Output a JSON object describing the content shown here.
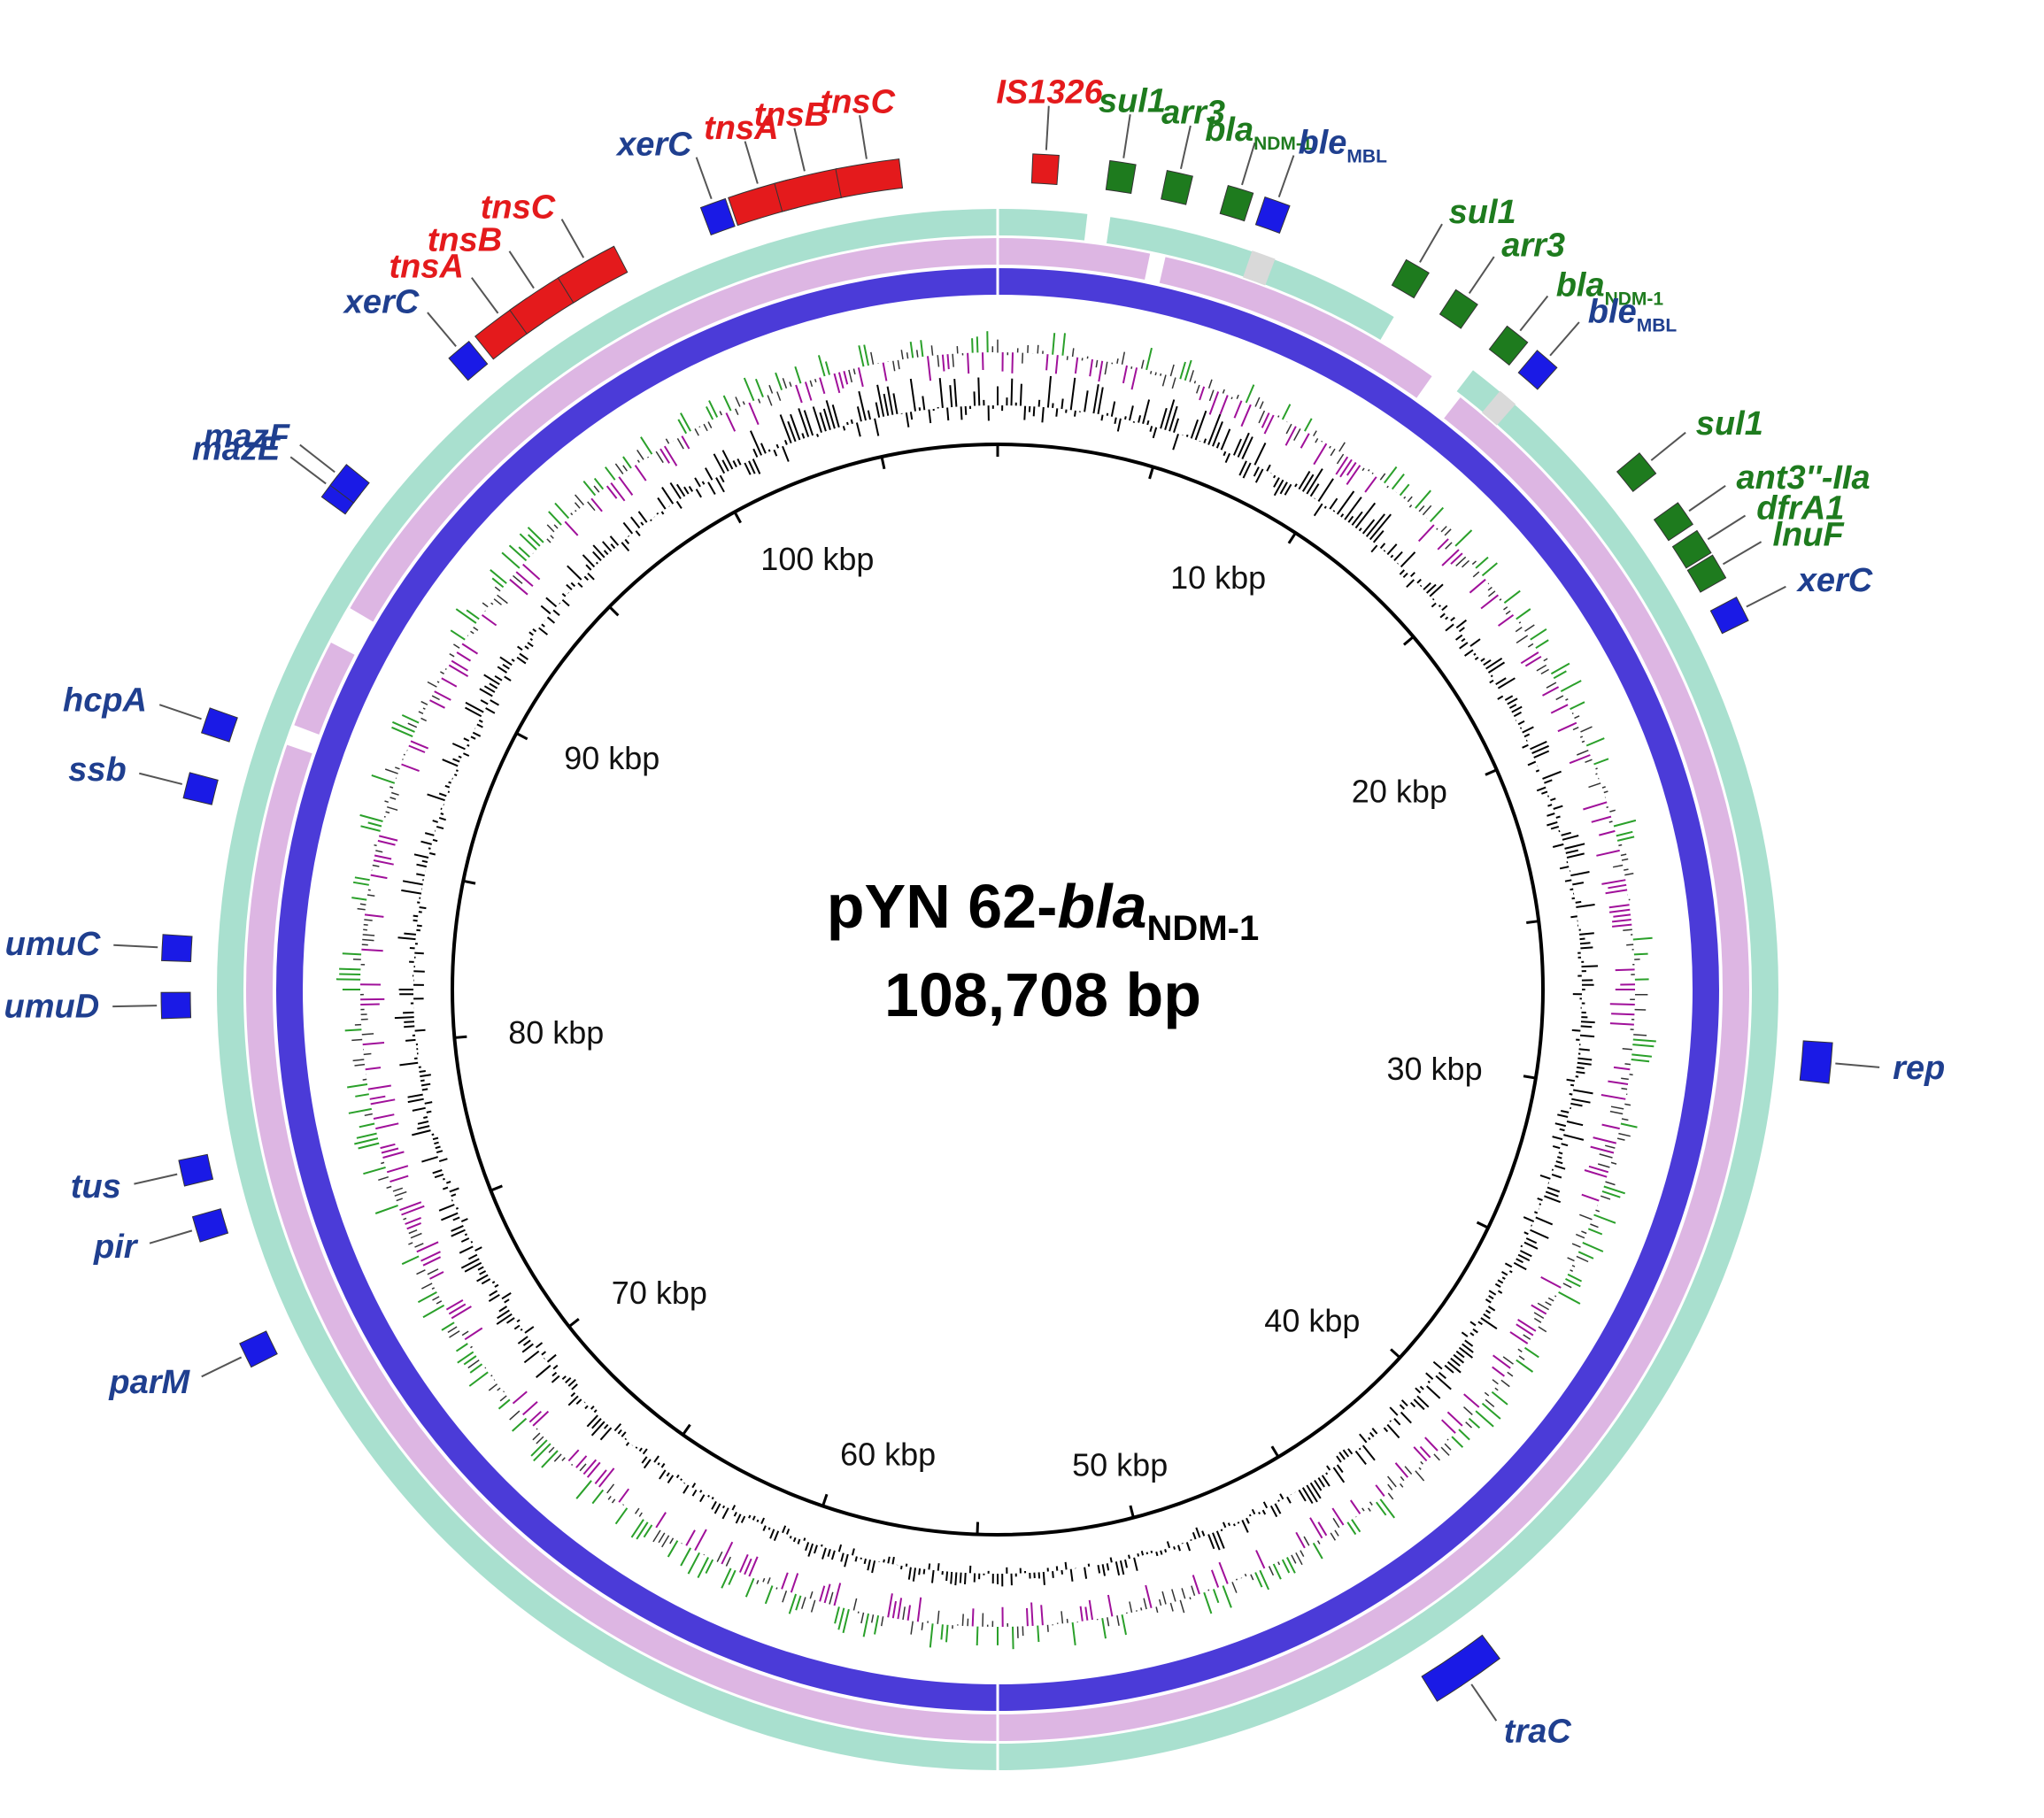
{
  "title": {
    "name_prefix": "pYN 62-",
    "name_italic": "bla",
    "name_sub": "NDM-1",
    "length_text": "108,708 bp"
  },
  "genome_length_bp": 108708,
  "scale_labels": [
    {
      "text": "10 kbp",
      "bp": 10000
    },
    {
      "text": "20 kbp",
      "bp": 20000
    },
    {
      "text": "30 kbp",
      "bp": 30000
    },
    {
      "text": "40 kbp",
      "bp": 40000
    },
    {
      "text": "50 kbp",
      "bp": 50000
    },
    {
      "text": "60 kbp",
      "bp": 60000
    },
    {
      "text": "70 kbp",
      "bp": 70000
    },
    {
      "text": "80 kbp",
      "bp": 80000
    },
    {
      "text": "90 kbp",
      "bp": 90000
    },
    {
      "text": "100 kbp",
      "bp": 100000
    }
  ],
  "colors": {
    "mobile_element": "#e41a1c",
    "resistance_gene": "#1e7b1e",
    "other_gene": "#1a1ae6",
    "label_blue": "#1f3f8f",
    "ring_teal": "#a9e0cf",
    "ring_pink": "#ddb6e3",
    "ring_blue": "#4b3bd8",
    "ring_gray": "#d9d9d9",
    "gc_content": "#000000",
    "gc_skew_pos": "#2aa02a",
    "gc_skew_neg": "#a0109a"
  },
  "genes": [
    {
      "name": "IS1326",
      "sub": "",
      "type": "mobile",
      "bp": 1000
    },
    {
      "name": "sul1",
      "sub": "",
      "type": "resistance",
      "bp": 2600
    },
    {
      "name": "arr3",
      "sub": "",
      "type": "resistance",
      "bp": 3800
    },
    {
      "name": "bla",
      "sub": "NDM-1",
      "type": "resistance",
      "bp": 5100
    },
    {
      "name": "ble",
      "sub": "MBL",
      "type": "other",
      "bp": 5900
    },
    {
      "name": "sul1",
      "sub": "",
      "type": "resistance",
      "bp": 9100
    },
    {
      "name": "arr3",
      "sub": "",
      "type": "resistance",
      "bp": 10300
    },
    {
      "name": "bla",
      "sub": "NDM-1",
      "type": "resistance",
      "bp": 11600
    },
    {
      "name": "ble",
      "sub": "MBL",
      "type": "other",
      "bp": 12400
    },
    {
      "name": "sul1",
      "sub": "",
      "type": "resistance",
      "bp": 15400
    },
    {
      "name": "ant3''-IIa",
      "sub": "",
      "type": "resistance",
      "bp": 16700
    },
    {
      "name": "dfrA1",
      "sub": "",
      "type": "resistance",
      "bp": 17400
    },
    {
      "name": "lnuF",
      "sub": "",
      "type": "resistance",
      "bp": 18000
    },
    {
      "name": "xerC",
      "sub": "",
      "type": "other",
      "bp": 19000
    },
    {
      "name": "rep",
      "sub": "",
      "type": "other",
      "bp": 28700
    },
    {
      "name": "traC",
      "sub": "",
      "type": "other",
      "bp": 44000
    },
    {
      "name": "parM",
      "sub": "",
      "type": "other",
      "bp": 73700
    },
    {
      "name": "pir",
      "sub": "",
      "type": "other",
      "bp": 76500
    },
    {
      "name": "tus",
      "sub": "",
      "type": "other",
      "bp": 77700
    },
    {
      "name": "umuD",
      "sub": "",
      "type": "other",
      "bp": 81200
    },
    {
      "name": "umuC",
      "sub": "",
      "type": "other",
      "bp": 82400
    },
    {
      "name": "ssb",
      "sub": "",
      "type": "other",
      "bp": 85800
    },
    {
      "name": "hcpA",
      "sub": "",
      "type": "other",
      "bp": 87200
    },
    {
      "name": "mazE",
      "sub": "",
      "type": "other",
      "bp": 92700
    },
    {
      "name": "mazF",
      "sub": "",
      "type": "other",
      "bp": 93000
    },
    {
      "name": "xerC",
      "sub": "",
      "type": "other",
      "bp": 96600
    },
    {
      "name": "tnsA",
      "sub": "",
      "type": "mobile",
      "bp": 97700
    },
    {
      "name": "tnsB",
      "sub": "",
      "type": "mobile",
      "bp": 98600
    },
    {
      "name": "tnsC",
      "sub": "",
      "type": "mobile",
      "bp": 99800
    },
    {
      "name": "xerC",
      "sub": "",
      "type": "other",
      "bp": 102700
    },
    {
      "name": "tnsA",
      "sub": "",
      "type": "mobile",
      "bp": 103700
    },
    {
      "name": "tnsB",
      "sub": "",
      "type": "mobile",
      "bp": 104700
    },
    {
      "name": "tnsC",
      "sub": "",
      "type": "mobile",
      "bp": 106000
    }
  ]
}
